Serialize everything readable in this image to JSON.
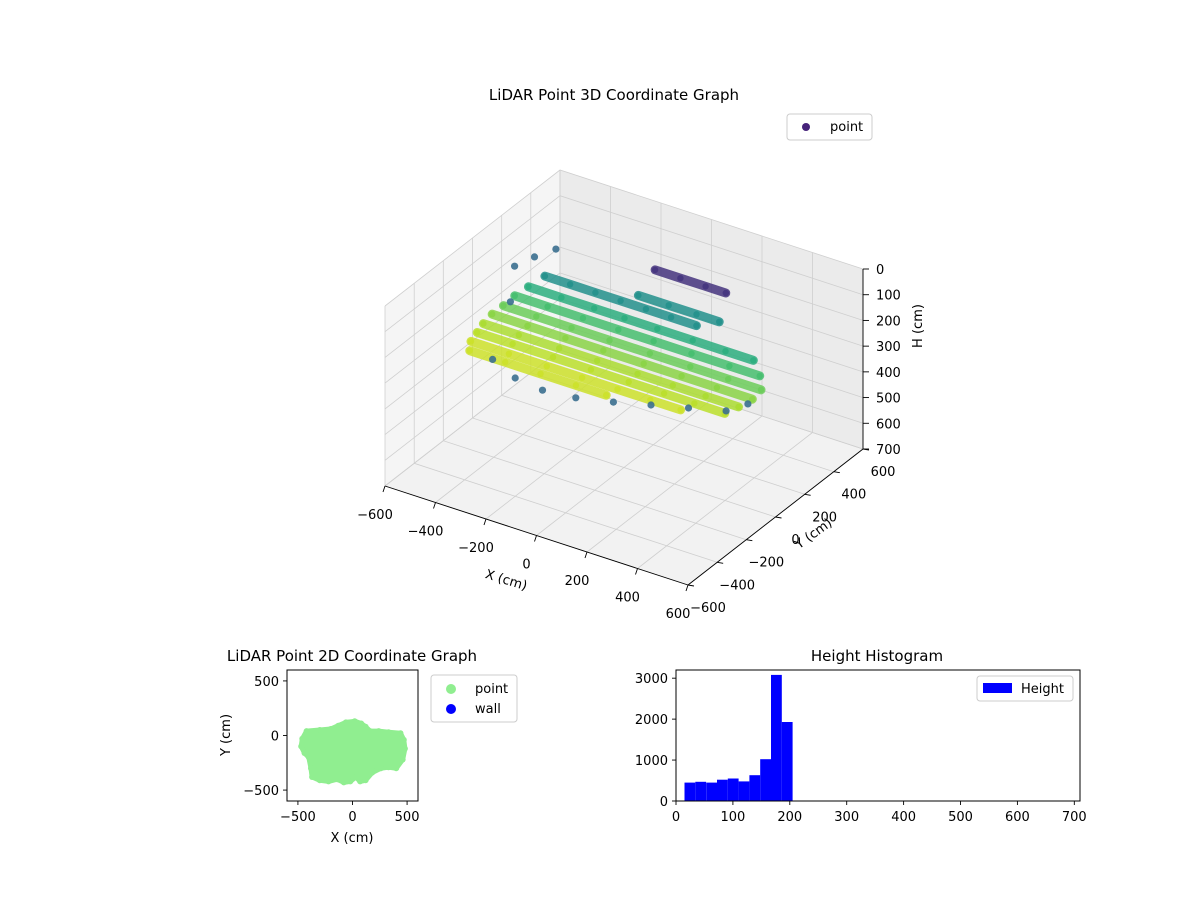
{
  "chart_data": [
    {
      "type": "scatter",
      "projection": "3d",
      "title": "LiDAR Point 3D Coordinate Graph",
      "xlabel": "X (cm)",
      "ylabel": "Y (cm)",
      "zlabel": "H (cm)",
      "xlim": [
        -600,
        600
      ],
      "ylim": [
        -600,
        600
      ],
      "zlim": [
        0,
        700
      ],
      "zinverted": true,
      "xticks": [
        -600,
        -400,
        -200,
        0,
        200,
        400,
        600
      ],
      "yticks": [
        -600,
        -400,
        -200,
        0,
        200,
        400,
        600
      ],
      "zticks": [
        0,
        100,
        200,
        300,
        400,
        500,
        600,
        700
      ],
      "colormap": "viridis",
      "grid": true,
      "legend": {
        "position": "top-right",
        "entries": [
          {
            "label": "point",
            "color": "#46237a"
          }
        ]
      },
      "surface_rows": [
        {
          "y": 300,
          "z": 80,
          "x": [
            -50,
            50,
            150,
            230
          ]
        },
        {
          "y": 220,
          "z": 150,
          "x": [
            -70,
            50,
            160,
            250
          ]
        },
        {
          "y": 150,
          "z": 150,
          "x": [
            -400,
            -300,
            -200,
            -100,
            0,
            100,
            200
          ]
        },
        {
          "y": 90,
          "z": 175,
          "x": [
            -430,
            -300,
            -170,
            -50,
            80,
            220,
            350,
            460
          ]
        },
        {
          "y": 30,
          "z": 190,
          "x": [
            -450,
            -320,
            -180,
            -40,
            100,
            250,
            400,
            520
          ]
        },
        {
          "y": -30,
          "z": 205,
          "x": [
            -460,
            -330,
            -190,
            -40,
            120,
            280,
            430,
            560
          ]
        },
        {
          "y": -90,
          "z": 215,
          "x": [
            -470,
            -330,
            -180,
            -30,
            130,
            280,
            420,
            560
          ]
        },
        {
          "y": -150,
          "z": 225,
          "x": [
            -470,
            -330,
            -170,
            -20,
            140,
            280,
            410,
            540
          ]
        },
        {
          "y": -210,
          "z": 230,
          "x": [
            -460,
            -320,
            -160,
            -10,
            140,
            280,
            400,
            520
          ]
        },
        {
          "y": -270,
          "z": 235,
          "x": [
            -450,
            -300,
            -150,
            -10,
            130,
            260,
            380
          ]
        },
        {
          "y": -330,
          "z": 235,
          "x": [
            -420,
            -280,
            -140,
            0,
            120
          ]
        }
      ],
      "edge_points": [
        {
          "x": -450,
          "y": 0,
          "z": 200
        },
        {
          "x": -330,
          "y": -330,
          "z": 240
        },
        {
          "x": -200,
          "y": -400,
          "z": 240
        },
        {
          "x": -80,
          "y": -420,
          "z": 240
        },
        {
          "x": 40,
          "y": -400,
          "z": 240
        },
        {
          "x": 160,
          "y": -350,
          "z": 240
        },
        {
          "x": 280,
          "y": -300,
          "z": 235
        },
        {
          "x": 400,
          "y": -250,
          "z": 230
        },
        {
          "x": 520,
          "y": -200,
          "z": 225
        },
        {
          "x": 560,
          "y": -120,
          "z": 220
        },
        {
          "x": -520,
          "y": 150,
          "z": 150
        },
        {
          "x": -470,
          "y": 200,
          "z": 120
        },
        {
          "x": -420,
          "y": 260,
          "z": 100
        }
      ]
    },
    {
      "type": "scatter",
      "title": "LiDAR Point 2D Coordinate Graph",
      "xlabel": "X (cm)",
      "ylabel": "Y (cm)",
      "xlim": [
        -600,
        600
      ],
      "ylim": [
        -600,
        600
      ],
      "xticks": [
        -500,
        0,
        500
      ],
      "yticks": [
        -500,
        0,
        500
      ],
      "legend": {
        "position": "outside-right",
        "entries": [
          {
            "label": "point",
            "color": "#90ee90"
          },
          {
            "label": "wall",
            "color": "#0000ff"
          }
        ]
      },
      "outline": [
        [
          -470,
          -100
        ],
        [
          -460,
          -30
        ],
        [
          -420,
          40
        ],
        [
          -300,
          50
        ],
        [
          -200,
          60
        ],
        [
          -130,
          90
        ],
        [
          -60,
          120
        ],
        [
          20,
          130
        ],
        [
          80,
          110
        ],
        [
          120,
          80
        ],
        [
          160,
          40
        ],
        [
          240,
          40
        ],
        [
          330,
          30
        ],
        [
          440,
          20
        ],
        [
          470,
          -40
        ],
        [
          480,
          -120
        ],
        [
          460,
          -220
        ],
        [
          400,
          -300
        ],
        [
          330,
          -290
        ],
        [
          260,
          -300
        ],
        [
          180,
          -340
        ],
        [
          120,
          -410
        ],
        [
          70,
          -420
        ],
        [
          30,
          -380
        ],
        [
          -20,
          -420
        ],
        [
          -80,
          -430
        ],
        [
          -140,
          -400
        ],
        [
          -220,
          -420
        ],
        [
          -300,
          -410
        ],
        [
          -370,
          -380
        ],
        [
          -380,
          -300
        ],
        [
          -400,
          -200
        ],
        [
          -440,
          -160
        ]
      ]
    },
    {
      "type": "bar",
      "title": "Height Histogram",
      "xlim": [
        0,
        710
      ],
      "ylim": [
        0,
        3200
      ],
      "xticks": [
        0,
        100,
        200,
        300,
        400,
        500,
        600,
        700
      ],
      "yticks": [
        0,
        1000,
        2000,
        3000
      ],
      "legend": {
        "position": "top-right",
        "entries": [
          {
            "label": "Height",
            "color": "#0000ff"
          }
        ]
      },
      "bin_width": 19,
      "bin_starts": [
        15,
        34,
        53,
        72,
        91,
        110,
        129,
        148,
        167,
        186
      ],
      "values": [
        450,
        470,
        450,
        520,
        550,
        480,
        630,
        1020,
        3080,
        1930
      ]
    }
  ]
}
